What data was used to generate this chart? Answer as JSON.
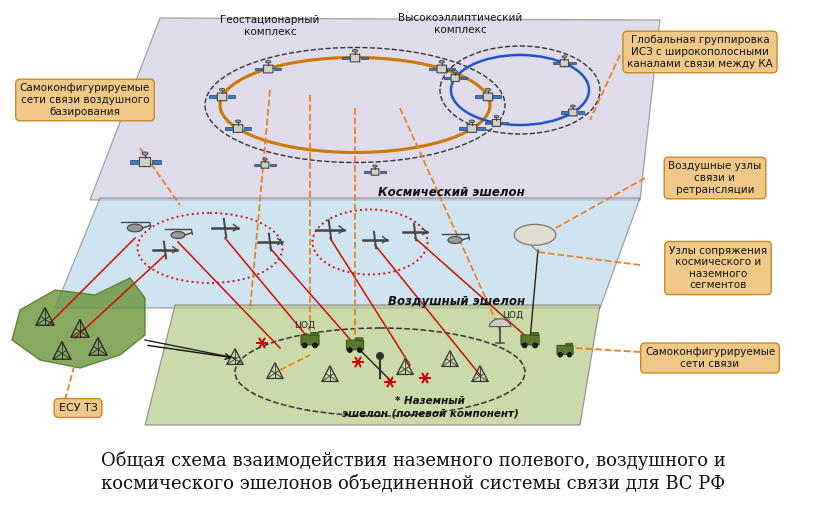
{
  "title_line1": "Общая схема взаимодействия наземного полевого, воздушного и",
  "title_line2": "космического эшелонов объединенной системы связи для ВС РФ",
  "title_fontsize": 13,
  "bg_color": "#ffffff",
  "layer_space_color": "#cfc8e0",
  "layer_air_color": "#b8d4e8",
  "layer_ground_color": "#b8cc88",
  "label_box_color": "#f0c888",
  "label_geo": "Геостационарный\nкомплекс",
  "label_heo": "Высокоэллиптический\nкомплекс",
  "label_global": "Глобальная группировка\nИСЗ с широкополосными\nканалами связи между КА",
  "label_self_conf_air": "Самоконфигурируемые\nсети связи воздушного\nбазирования",
  "label_air_nodes": "Воздушные узлы\nсвязи и\nретрансляции",
  "label_junction": "Узлы сопряжения\nкосмического и\nназемного\nсегментов",
  "label_self_conf_ground": "Самоконфигурируемые\nсети связи",
  "label_esu": "ЕСУ ТЗ",
  "label_space": "Космический эшелон",
  "label_air": "Воздушный эшелон",
  "label_ground": "Наземный\nэшелон (полевой компонент)",
  "label_tsod1": "ЦОД",
  "label_tsod2": "ЦОД"
}
